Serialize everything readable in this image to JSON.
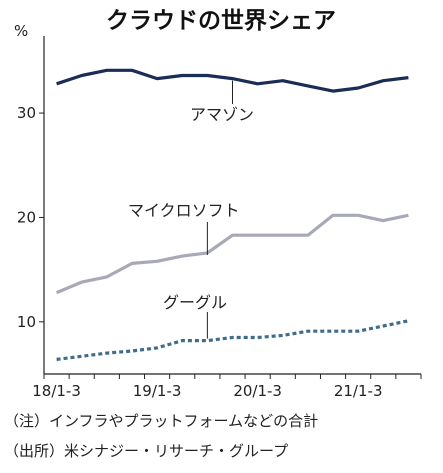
{
  "chart_data": {
    "type": "line",
    "title": "クラウドの世界シェア",
    "unit_label": "%",
    "ylim": [
      5,
      37
    ],
    "yticks": [
      10,
      20,
      30
    ],
    "x_ticks": [
      "18/1-3",
      "19/1-3",
      "20/1-3",
      "21/1-3"
    ],
    "x_tick_index": [
      0,
      4,
      8,
      12
    ],
    "series": [
      {
        "name": "アマゾン",
        "color": "#1a2d57",
        "dash": "solid",
        "values": [
          32.8,
          33.6,
          34.1,
          34.1,
          33.3,
          33.6,
          33.6,
          33.3,
          32.8,
          33.1,
          32.6,
          32.1,
          32.4,
          33.1,
          33.4
        ]
      },
      {
        "name": "マイクロソフト",
        "color": "#a7a9b7",
        "dash": "solid",
        "values": [
          12.8,
          13.8,
          14.3,
          15.6,
          15.8,
          16.3,
          16.6,
          18.3,
          18.3,
          18.3,
          18.3,
          20.2,
          20.2,
          19.7,
          20.2
        ]
      },
      {
        "name": "グーグル",
        "color": "#3f6c8d",
        "dash": "dotted",
        "values": [
          6.4,
          6.7,
          7.0,
          7.2,
          7.5,
          8.2,
          8.2,
          8.5,
          8.5,
          8.7,
          9.1,
          9.1,
          9.1,
          9.6,
          10.1
        ]
      }
    ],
    "legend": "inline-labels",
    "grid": false
  },
  "notes": {
    "note1": "（注）インフラやプラットフォームなどの合計",
    "note2": "（出所）米シナジー・リサーチ・グループ"
  }
}
